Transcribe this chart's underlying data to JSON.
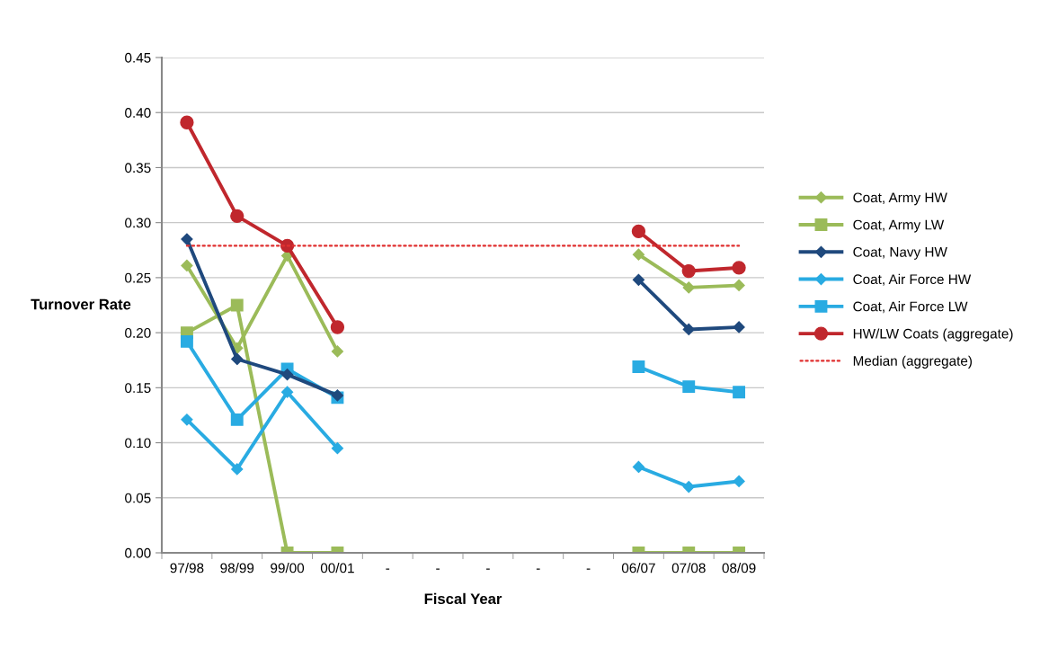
{
  "chart_data": {
    "type": "line",
    "xlabel": "Fiscal Year",
    "ylabel": "Turnover Rate",
    "categories": [
      "97/98",
      "98/99",
      "99/00",
      "00/01",
      "-",
      "-",
      "-",
      "-",
      "-",
      "06/07",
      "07/08",
      "08/09"
    ],
    "ylim": [
      0,
      0.45
    ],
    "yticks": [
      {
        "value": 0,
        "label": "0.00"
      },
      {
        "value": 0.05,
        "label": "0.05"
      },
      {
        "value": 0.1,
        "label": "0.10"
      },
      {
        "value": 0.15,
        "label": "0.15"
      },
      {
        "value": 0.2,
        "label": "0.20"
      },
      {
        "value": 0.25,
        "label": "0.25"
      },
      {
        "value": 0.3,
        "label": "0.30"
      },
      {
        "value": 0.35,
        "label": "0.35"
      },
      {
        "value": 0.4,
        "label": "0.40"
      },
      {
        "value": 0.45,
        "label": "0.45"
      }
    ],
    "grid": "y",
    "legend": "right",
    "series": [
      {
        "name": "Coat, Army HW",
        "color": "#9bbb59",
        "marker": "diamond",
        "values": [
          0.261,
          0.186,
          0.27,
          0.183,
          null,
          null,
          null,
          null,
          null,
          0.271,
          0.241,
          0.243
        ]
      },
      {
        "name": "Coat, Army LW",
        "color": "#9bbb59",
        "marker": "square",
        "values": [
          0.2,
          0.225,
          0,
          0,
          null,
          null,
          null,
          null,
          null,
          0,
          0,
          0
        ]
      },
      {
        "name": "Coat, Navy HW",
        "color": "#1f497d",
        "marker": "diamond",
        "values": [
          0.285,
          0.176,
          0.162,
          0.143,
          null,
          null,
          null,
          null,
          null,
          0.248,
          0.203,
          0.205
        ]
      },
      {
        "name": "Coat, Air Force HW",
        "color": "#29abe2",
        "marker": "diamond",
        "values": [
          0.121,
          0.076,
          0.146,
          0.095,
          null,
          null,
          null,
          null,
          null,
          0.078,
          0.06,
          0.065
        ]
      },
      {
        "name": "Coat, Air Force LW",
        "color": "#29abe2",
        "marker": "square",
        "values": [
          0.192,
          0.121,
          0.167,
          0.141,
          null,
          null,
          null,
          null,
          null,
          0.169,
          0.151,
          0.146
        ]
      },
      {
        "name": "HW/LW Coats (aggregate)",
        "color": "#c0272d",
        "marker": "circle",
        "values": [
          0.391,
          0.306,
          0.279,
          0.205,
          null,
          null,
          null,
          null,
          null,
          0.292,
          0.256,
          0.259
        ]
      },
      {
        "name": "Median (aggregate)",
        "color": "#e03030",
        "marker": "none",
        "line_style": "dotted",
        "values": [
          0.279,
          0.279,
          0.279,
          0.279,
          0.279,
          0.279,
          0.279,
          0.279,
          0.279,
          0.279,
          0.279,
          0.279
        ]
      }
    ]
  }
}
